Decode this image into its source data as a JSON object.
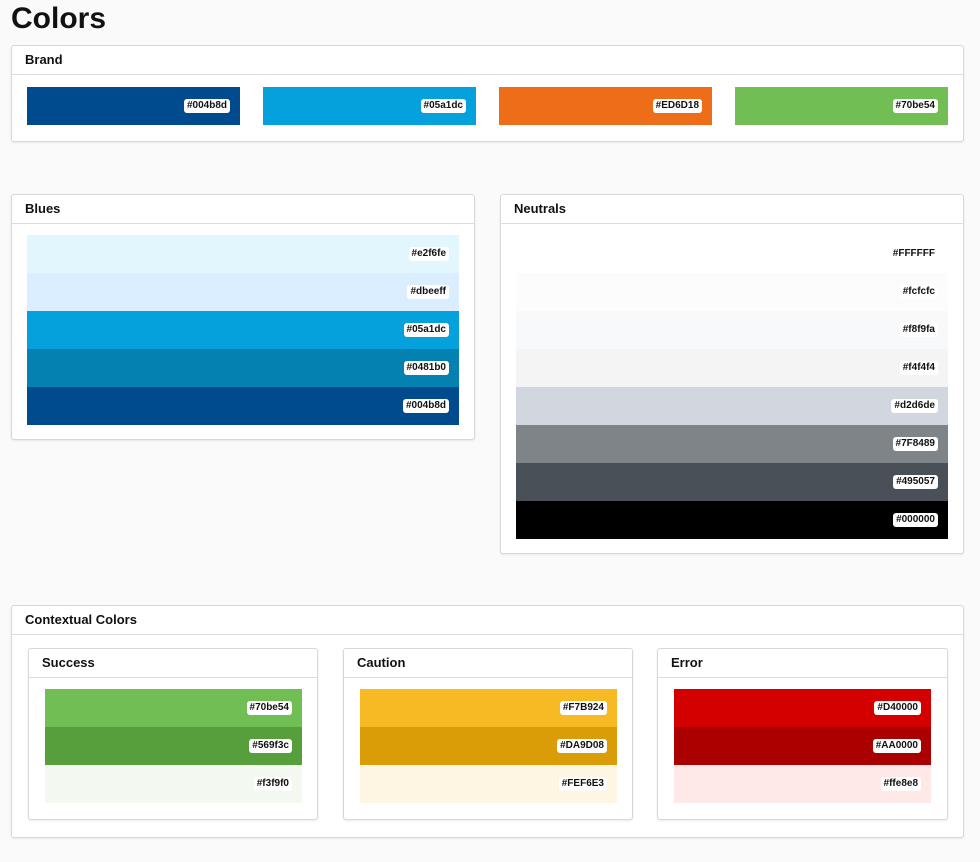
{
  "title": "Colors",
  "brand": {
    "title": "Brand",
    "swatches": [
      "#004b8d",
      "#05a1dc",
      "#ED6D18",
      "#70be54"
    ]
  },
  "blues": {
    "title": "Blues",
    "swatches": [
      "#e2f6fe",
      "#dbeeff",
      "#05a1dc",
      "#0481b0",
      "#004b8d"
    ]
  },
  "neutrals": {
    "title": "Neutrals",
    "swatches": [
      "#FFFFFF",
      "#fcfcfc",
      "#f8f9fa",
      "#f4f4f4",
      "#d2d6de",
      "#7F8489",
      "#495057",
      "#000000"
    ]
  },
  "contextual": {
    "title": "Contextual Colors",
    "groups": [
      {
        "title": "Success",
        "swatches": [
          "#70be54",
          "#569f3c",
          "#f3f9f0"
        ]
      },
      {
        "title": "Caution",
        "swatches": [
          "#F7B924",
          "#DA9D08",
          "#FEF6E3"
        ]
      },
      {
        "title": "Error",
        "swatches": [
          "#D40000",
          "#AA0000",
          "#ffe8e8"
        ]
      }
    ]
  }
}
